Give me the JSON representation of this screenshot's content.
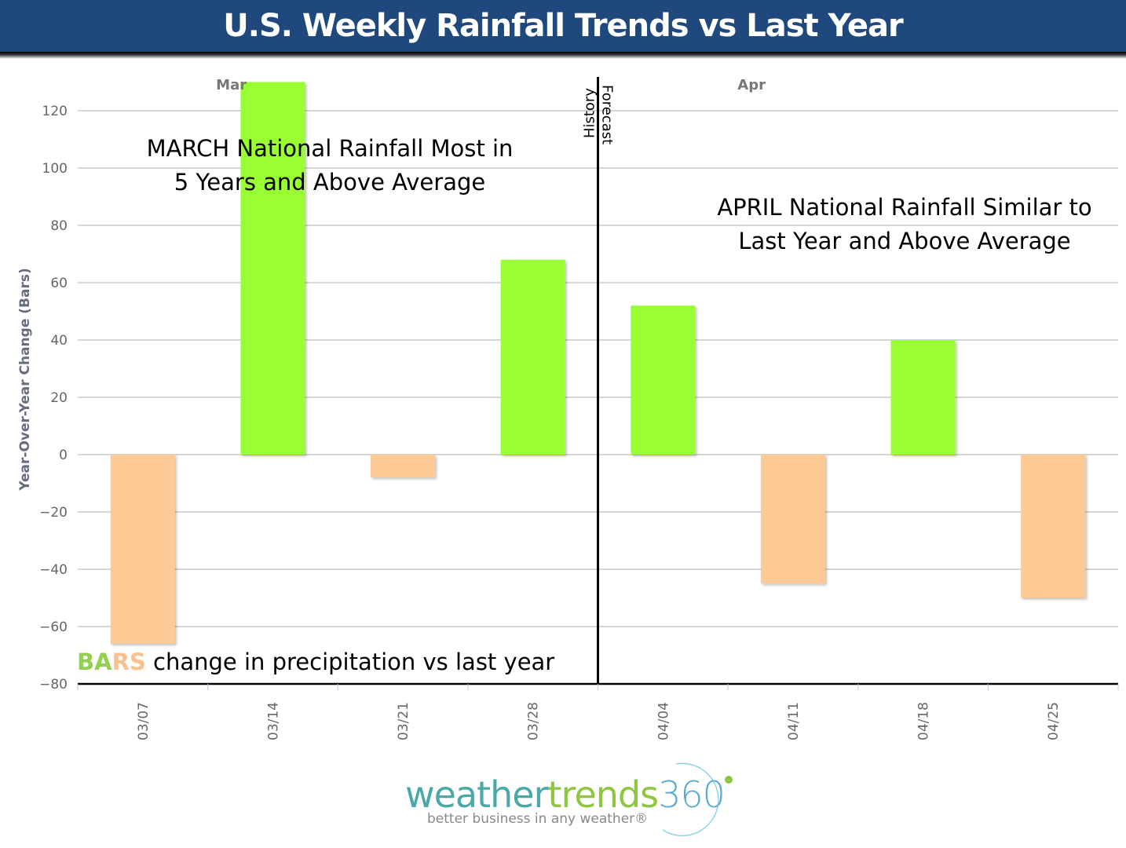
{
  "header": {
    "title": "U.S. Weekly Rainfall Trends vs Last Year"
  },
  "chart_data": {
    "type": "bar",
    "title": "U.S. Weekly Rainfall Trends vs Last Year",
    "xlabel": "",
    "ylabel": "Year-Over-Year Change (Bars)",
    "ylim": [
      -80,
      130
    ],
    "yticks": [
      120,
      100,
      80,
      60,
      40,
      20,
      0,
      -20,
      -40,
      -60,
      -80
    ],
    "ytick_labels": [
      "120",
      "100",
      "80",
      "60",
      "40",
      "20",
      "0",
      "−20",
      "−40",
      "−60",
      "−80"
    ],
    "grid": true,
    "categories": [
      "03/07",
      "03/14",
      "03/21",
      "03/28",
      "04/04",
      "04/11",
      "04/18",
      "04/25"
    ],
    "values": [
      -66,
      130,
      -8,
      68,
      52,
      -45,
      40,
      -50
    ],
    "colors": {
      "positive": "#99ff33",
      "negative": "#fdc995"
    },
    "month_labels": [
      {
        "label": "Mar",
        "after_category": 1
      },
      {
        "label": "Apr",
        "after_category": 5
      }
    ],
    "divider": {
      "between_categories": [
        3,
        4
      ],
      "left_label": "History",
      "right_label": "Forecast"
    },
    "annotations": [
      {
        "lines": [
          "MARCH National Rainfall Most in",
          "5 Years and Above Average"
        ]
      },
      {
        "lines": [
          "APRIL National Rainfall Similar to",
          "Last Year and Above Average"
        ]
      }
    ],
    "legend": {
      "part1": "BA",
      "part2": "RS",
      "text": " change in precipitation vs last year",
      "part1_color": "#92d050",
      "part2_color": "#fac090"
    }
  },
  "logo": {
    "word1": "weather",
    "word2": "trends",
    "word3": "360",
    "tagline": "better business in any weather®"
  }
}
